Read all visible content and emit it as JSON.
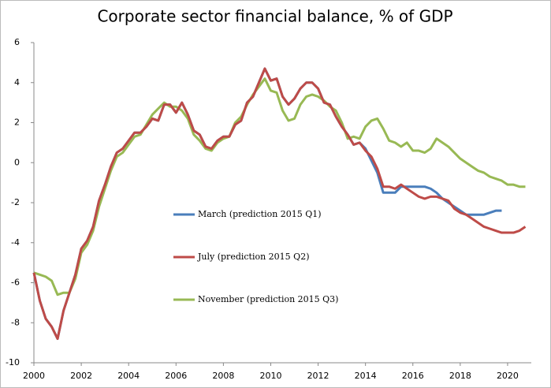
{
  "chart_data": {
    "type": "line",
    "title": "Corporate sector financial balance, % of GDP",
    "x": [
      2000,
      2000.25,
      2000.5,
      2000.75,
      2001,
      2001.25,
      2001.5,
      2001.75,
      2002,
      2002.25,
      2002.5,
      2002.75,
      2003,
      2003.25,
      2003.5,
      2003.75,
      2004,
      2004.25,
      2004.5,
      2004.75,
      2005,
      2005.25,
      2005.5,
      2005.75,
      2006,
      2006.25,
      2006.5,
      2006.75,
      2007,
      2007.25,
      2007.5,
      2007.75,
      2008,
      2008.25,
      2008.5,
      2008.75,
      2009,
      2009.25,
      2009.5,
      2009.75,
      2010,
      2010.25,
      2010.5,
      2010.75,
      2011,
      2011.25,
      2011.5,
      2011.75,
      2012,
      2012.25,
      2012.5,
      2012.75,
      2013,
      2013.25,
      2013.5,
      2013.75,
      2014,
      2014.25,
      2014.5,
      2014.75,
      2015,
      2015.25,
      2015.5,
      2015.75,
      2016,
      2016.25,
      2016.5,
      2016.75,
      2017,
      2017.25,
      2017.5,
      2017.75,
      2018,
      2018.25,
      2018.5,
      2018.75,
      2019,
      2019.25,
      2019.5,
      2019.75,
      2020,
      2020.25,
      2020.5,
      2020.75
    ],
    "series": [
      {
        "name": "March (prediction 2015 Q1)",
        "color": "#4a7ebb",
        "values": [
          -5.5,
          -6.9,
          -7.8,
          -8.2,
          -8.8,
          -7.4,
          -6.5,
          -5.6,
          -4.3,
          -3.9,
          -3.2,
          -1.9,
          -1.1,
          -0.2,
          0.5,
          0.7,
          1.1,
          1.5,
          1.5,
          1.8,
          2.2,
          2.1,
          2.9,
          2.9,
          2.5,
          3.0,
          2.4,
          1.6,
          1.4,
          0.8,
          0.7,
          1.1,
          1.3,
          1.3,
          1.9,
          2.1,
          3.0,
          3.3,
          4.0,
          4.7,
          4.1,
          4.2,
          3.3,
          2.9,
          3.2,
          3.7,
          4.0,
          4.0,
          3.7,
          3.0,
          2.9,
          2.3,
          1.8,
          1.4,
          0.9,
          1.0,
          0.7,
          0.1,
          -0.5,
          -1.5,
          -1.5,
          -1.5,
          -1.2,
          -1.2,
          -1.2,
          -1.2,
          -1.2,
          -1.3,
          -1.5,
          -1.8,
          -2.0,
          -2.2,
          -2.4,
          -2.6,
          -2.6,
          -2.6,
          -2.6,
          -2.5,
          -2.4,
          -2.4,
          null,
          null,
          null,
          null
        ]
      },
      {
        "name": "July (prediction 2015 Q2)",
        "color": "#be4b48",
        "values": [
          -5.5,
          -6.9,
          -7.8,
          -8.2,
          -8.8,
          -7.4,
          -6.5,
          -5.6,
          -4.3,
          -3.9,
          -3.2,
          -1.9,
          -1.1,
          -0.2,
          0.5,
          0.7,
          1.1,
          1.5,
          1.5,
          1.8,
          2.2,
          2.1,
          2.9,
          2.9,
          2.5,
          3.0,
          2.4,
          1.6,
          1.4,
          0.8,
          0.7,
          1.1,
          1.3,
          1.3,
          1.9,
          2.1,
          3.0,
          3.3,
          4.0,
          4.7,
          4.1,
          4.2,
          3.3,
          2.9,
          3.2,
          3.7,
          4.0,
          4.0,
          3.7,
          3.0,
          2.9,
          2.3,
          1.8,
          1.4,
          0.9,
          1.0,
          0.6,
          0.3,
          -0.3,
          -1.2,
          -1.2,
          -1.3,
          -1.1,
          -1.3,
          -1.5,
          -1.7,
          -1.8,
          -1.7,
          -1.7,
          -1.8,
          -1.9,
          -2.3,
          -2.5,
          -2.6,
          -2.8,
          -3.0,
          -3.2,
          -3.3,
          -3.4,
          -3.5,
          -3.5,
          -3.5,
          -3.4,
          -3.2
        ]
      },
      {
        "name": "November (prediction 2015 Q3)",
        "color": "#98b954",
        "values": [
          -5.5,
          -5.6,
          -5.7,
          -5.9,
          -6.6,
          -6.5,
          -6.5,
          -5.8,
          -4.5,
          -4.1,
          -3.4,
          -2.2,
          -1.3,
          -0.4,
          0.3,
          0.5,
          0.9,
          1.3,
          1.4,
          1.9,
          2.4,
          2.7,
          3.0,
          2.8,
          2.8,
          2.6,
          2.2,
          1.4,
          1.1,
          0.7,
          0.6,
          1.0,
          1.2,
          1.3,
          2.0,
          2.3,
          2.9,
          3.4,
          3.8,
          4.2,
          3.6,
          3.5,
          2.6,
          2.1,
          2.2,
          2.9,
          3.3,
          3.4,
          3.3,
          3.1,
          2.8,
          2.6,
          2.0,
          1.2,
          1.3,
          1.2,
          1.8,
          2.1,
          2.2,
          1.7,
          1.1,
          1.0,
          0.8,
          1.0,
          0.6,
          0.6,
          0.5,
          0.7,
          1.2,
          1.0,
          0.8,
          0.5,
          0.2,
          0.0,
          -0.2,
          -0.4,
          -0.5,
          -0.7,
          -0.8,
          -0.9,
          -1.1,
          -1.1,
          -1.2,
          -1.2
        ]
      }
    ],
    "xlim": [
      2000,
      2021
    ],
    "xticks": [
      2000,
      2002,
      2004,
      2006,
      2008,
      2010,
      2012,
      2014,
      2016,
      2018,
      2020
    ],
    "ylim": [
      -10,
      6
    ],
    "yticks": [
      -10,
      -8,
      -6,
      -4,
      -2,
      0,
      2,
      4,
      6
    ]
  }
}
